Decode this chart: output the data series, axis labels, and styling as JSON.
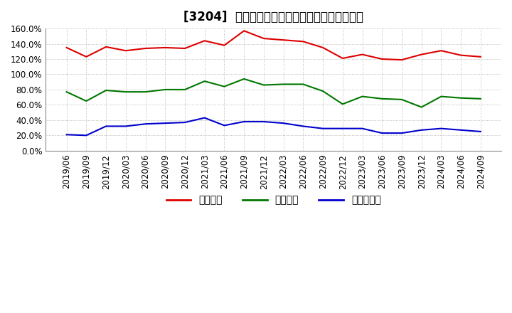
{
  "title": "[3204]  流動比率、当座比率、現頗金比率の推移",
  "x_labels": [
    "2019/06",
    "2019/09",
    "2019/12",
    "2020/03",
    "2020/06",
    "2020/09",
    "2020/12",
    "2021/03",
    "2021/06",
    "2021/09",
    "2021/12",
    "2022/03",
    "2022/06",
    "2022/09",
    "2022/12",
    "2023/03",
    "2023/06",
    "2023/09",
    "2023/12",
    "2024/03",
    "2024/06",
    "2024/09"
  ],
  "ryudo": [
    135,
    123,
    136,
    131,
    134,
    135,
    134,
    144,
    138,
    157,
    147,
    145,
    143,
    135,
    121,
    126,
    120,
    119,
    126,
    131,
    125,
    123
  ],
  "touza": [
    77,
    65,
    79,
    77,
    77,
    80,
    80,
    91,
    84,
    94,
    86,
    87,
    87,
    78,
    61,
    71,
    68,
    67,
    57,
    71,
    69,
    68
  ],
  "genkin": [
    21,
    20,
    32,
    32,
    35,
    36,
    37,
    43,
    33,
    38,
    38,
    36,
    32,
    29,
    29,
    29,
    23,
    23,
    27,
    29,
    27,
    25
  ],
  "line_colors": [
    "#dd0000",
    "#007700",
    "#0000cc"
  ],
  "legend_labels": [
    "流動比率",
    "当座比率",
    "現頗金比率"
  ],
  "ylim": [
    0,
    160
  ],
  "yticks": [
    0,
    20,
    40,
    60,
    80,
    100,
    120,
    140,
    160
  ],
  "background_color": "#ffffff",
  "grid_color": "#aaaaaa",
  "title_fontsize": 12,
  "axis_fontsize": 8.5
}
